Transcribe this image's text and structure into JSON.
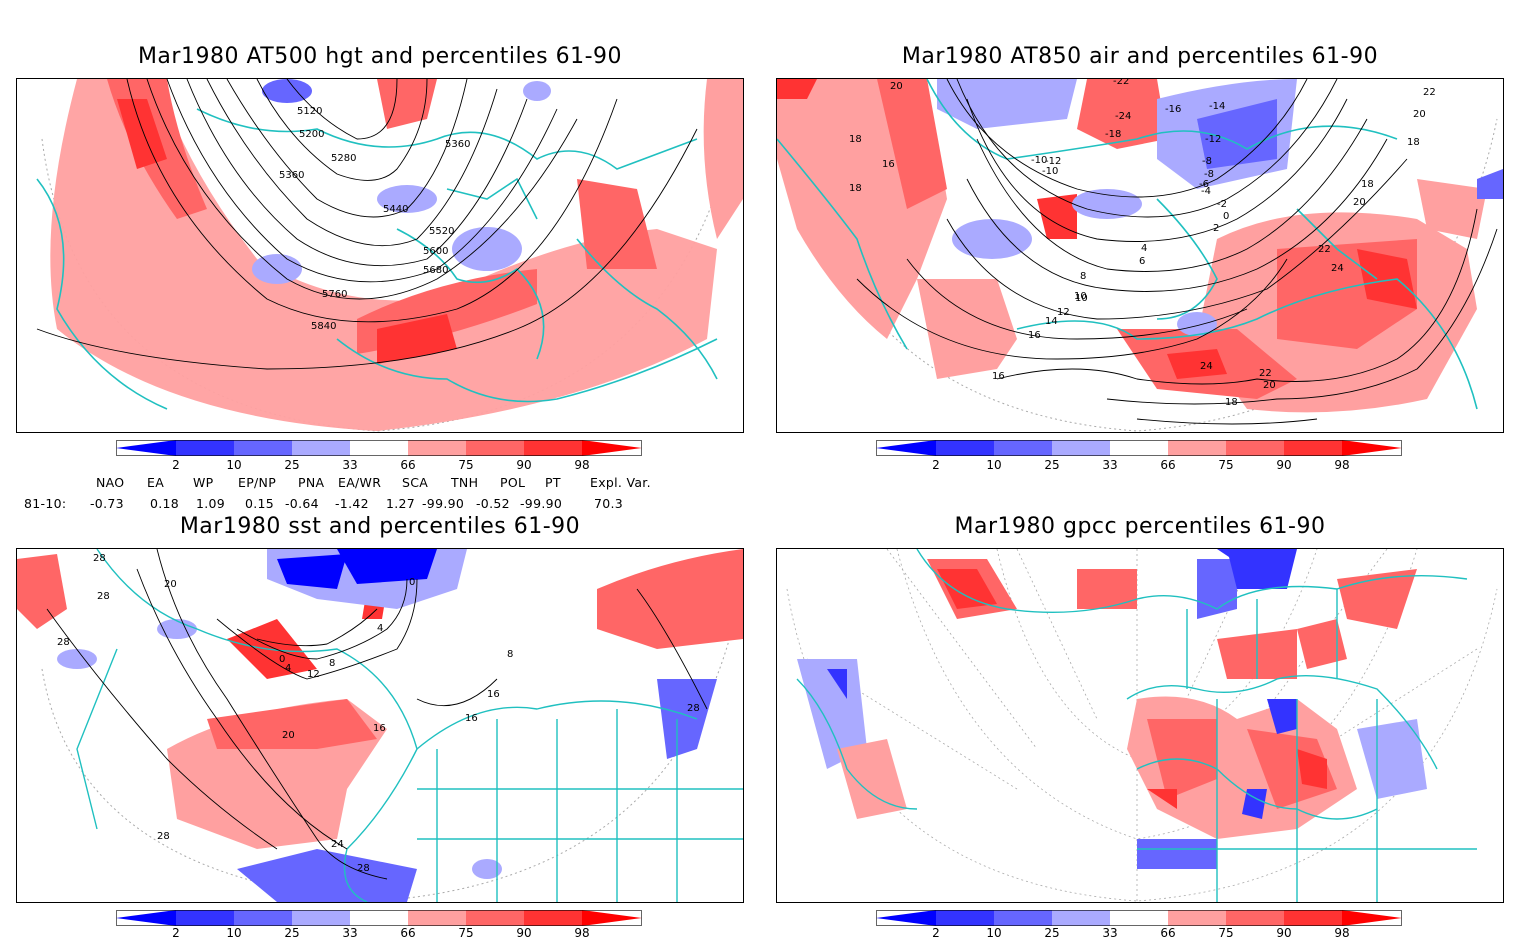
{
  "panels": [
    {
      "id": "hgt500",
      "title": "Mar1980 AT500 hgt and percentiles 61-90",
      "contour_labels": [
        "5120",
        "5200",
        "5280",
        "5360",
        "5360",
        "5440",
        "5520",
        "5600",
        "5680",
        "5760",
        "5840"
      ]
    },
    {
      "id": "air850",
      "title": "Mar1980 AT850 air and percentiles 61-90",
      "contour_labels": [
        "20",
        "18",
        "16",
        "18",
        "-22",
        "-24",
        "-16",
        "-14",
        "-18",
        "-12",
        "-10",
        "-8",
        "-12",
        "-10",
        "-8",
        "-6",
        "-4",
        "-2",
        "0",
        "2",
        "4",
        "6",
        "8",
        "10",
        "12",
        "14",
        "16",
        "16",
        "18",
        "20",
        "22",
        "24",
        "24",
        "22",
        "20",
        "18",
        "22",
        "20",
        "18",
        "10"
      ]
    },
    {
      "id": "sst",
      "title": "Mar1980 sst and percentiles 61-90",
      "contour_labels": [
        "28",
        "28",
        "28",
        "20",
        "0",
        "4",
        "8",
        "12",
        "16",
        "16",
        "16",
        "20",
        "24",
        "28",
        "28",
        "0",
        "4",
        "8",
        "28"
      ]
    },
    {
      "id": "gpcc",
      "title": "Mar1980 gpcc percentiles 61-90",
      "contour_labels": []
    }
  ],
  "colorbar": {
    "ticks": [
      "2",
      "10",
      "25",
      "33",
      "66",
      "75",
      "90",
      "98"
    ],
    "colors": {
      "below2": "#0000ff",
      "b2_10": "#3333ff",
      "b10_25": "#6666ff",
      "b25_33": "#aaaaff",
      "a66_75": "#ffa0a0",
      "a75_90": "#ff6666",
      "a90_98": "#ff3333",
      "above98": "#ff0000"
    }
  },
  "indices": {
    "header": [
      "NAO",
      "EA",
      "WP",
      "EP/NP",
      "PNA",
      "EA/WR",
      "SCA",
      "TNH",
      "POL",
      "PT",
      "Expl. Var."
    ],
    "row_label": "81-10:",
    "values": [
      "-0.73",
      "0.18",
      "1.09",
      "0.15",
      "-0.64",
      "-1.42",
      "1.27",
      "-99.90",
      "-0.52",
      "-99.90",
      "70.3"
    ]
  },
  "colors": {
    "coast": "#20c0c0",
    "contour": "#000000",
    "frame": "#000000",
    "grid": "#aaaaaa"
  }
}
